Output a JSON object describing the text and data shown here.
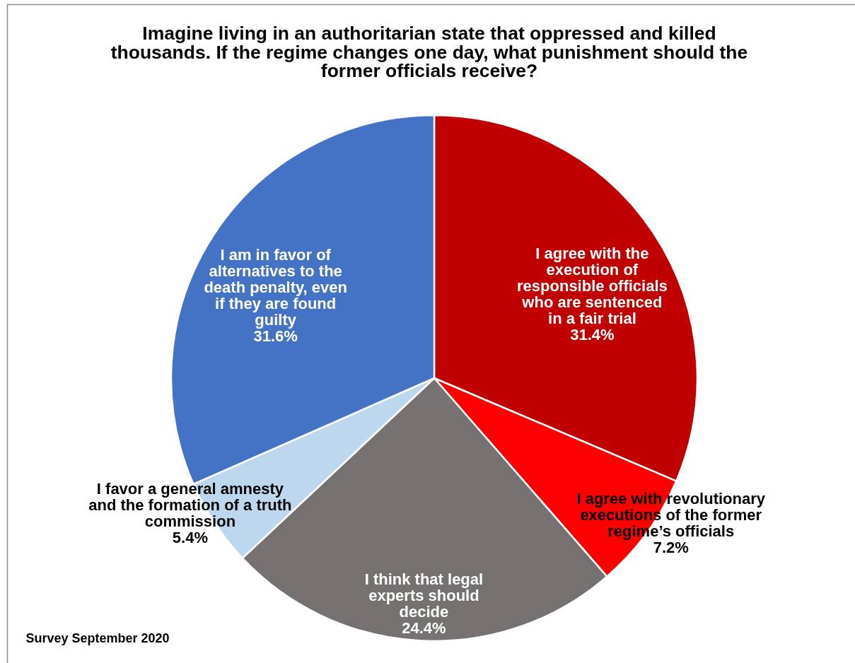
{
  "chart_data": {
    "type": "pie",
    "title": "Imagine living in an authoritarian state that oppressed and killed thousands. If the regime changes one day, what punishment should the former officials receive?",
    "categories": [
      "I agree with the execution of responsible officials who are sentenced in a fair trial",
      "I agree with revolutionary executions of the former regime’s officials",
      "I think that legal experts should decide",
      "I favor a general amnesty and the formation of a truth commission",
      "I am in favor of alternatives to the death penalty, even if they are found guilty"
    ],
    "values": [
      31.4,
      7.2,
      24.4,
      5.4,
      31.6
    ],
    "colors": [
      "#c00000",
      "#ff0000",
      "#767171",
      "#bdd7ee",
      "#4472c4"
    ],
    "value_labels": [
      "31.4%",
      "7.2%",
      "24.4%",
      "5.4%",
      "31.6%"
    ],
    "annotations": [
      "Survey September 2020"
    ]
  }
}
